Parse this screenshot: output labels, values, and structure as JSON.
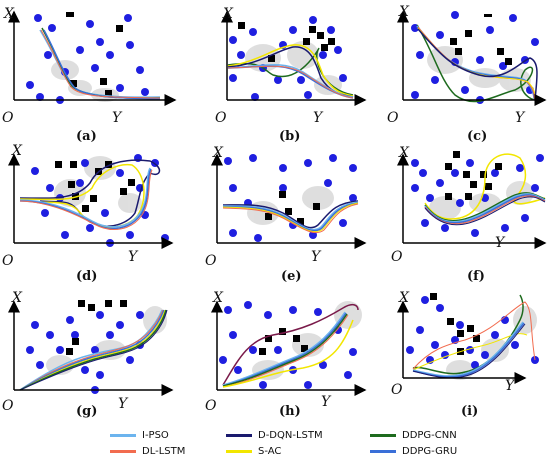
{
  "figure": {
    "axis_x_symbol": "X",
    "axis_y_symbol": "Y",
    "origin_symbol": "O",
    "panels": [
      {
        "id": "a",
        "label": "(a)"
      },
      {
        "id": "b",
        "label": "(b)"
      },
      {
        "id": "c",
        "label": "(c)"
      },
      {
        "id": "d",
        "label": "(d)"
      },
      {
        "id": "e",
        "label": "(e)"
      },
      {
        "id": "f",
        "label": "(f)"
      },
      {
        "id": "g",
        "label": "(g)"
      },
      {
        "id": "h",
        "label": "(h)"
      },
      {
        "id": "i",
        "label": "(i)"
      }
    ]
  },
  "legend": [
    {
      "label": "I-PSO",
      "color": "#6cb4ee"
    },
    {
      "label": "DL-LSTM",
      "color": "#f26c4f"
    },
    {
      "label": "D-DQN-LSTM",
      "color": "#1a1a6e"
    },
    {
      "label": "S-AC",
      "color": "#f2e600"
    },
    {
      "label": "DDPG-CNN",
      "color": "#1e6b1e"
    },
    {
      "label": "DDPG-GRU",
      "color": "#3a6fd8"
    }
  ],
  "colors": {
    "obstacle_circle": "#1f1fe0",
    "obstacle_square": "#000000",
    "uncertainty_shadow": "#b8b8b8"
  }
}
